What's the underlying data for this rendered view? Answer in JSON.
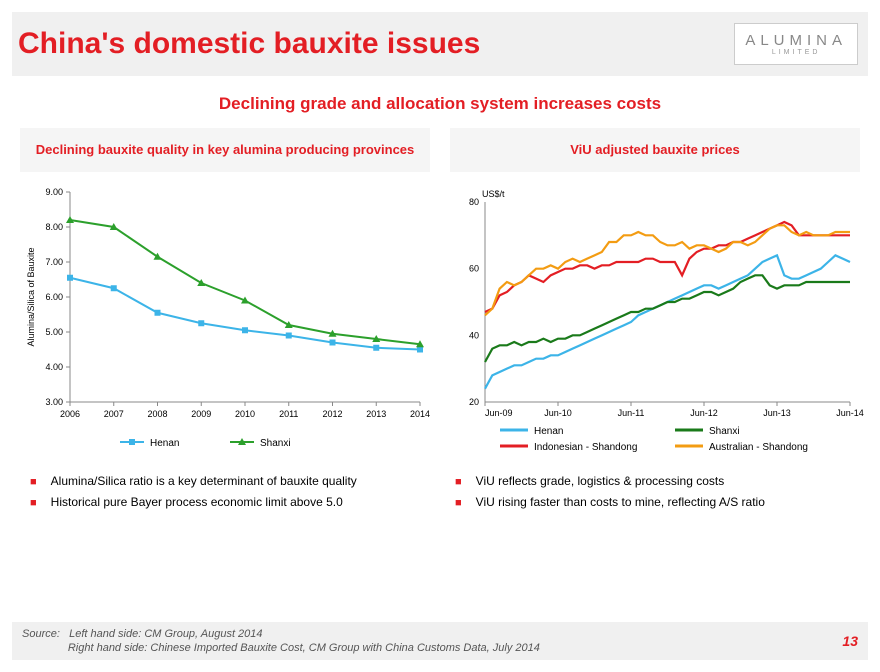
{
  "header": {
    "title": "China's domestic bauxite issues",
    "logo_main": "ALUMINA",
    "logo_sub": "LIMITED"
  },
  "subtitle": "Declining grade and allocation system increases costs",
  "left_chart": {
    "title": "Declining bauxite quality in key alumina producing provinces",
    "type": "line",
    "y_label": "Alumina/Silica of Bauxite",
    "x_ticks": [
      "2006",
      "2007",
      "2008",
      "2009",
      "2010",
      "2011",
      "2012",
      "2013",
      "2014"
    ],
    "y_min": 3.0,
    "y_max": 9.0,
    "y_step": 1.0,
    "series": [
      {
        "name": "Henan",
        "color": "#3cb4e8",
        "marker": "square",
        "values": [
          6.55,
          6.25,
          5.55,
          5.25,
          5.05,
          4.9,
          4.7,
          4.55,
          4.5
        ]
      },
      {
        "name": "Shanxi",
        "color": "#2ca02c",
        "marker": "triangle",
        "values": [
          8.2,
          8.0,
          7.15,
          6.4,
          5.9,
          5.2,
          4.95,
          4.8,
          4.65
        ]
      }
    ],
    "axis_color": "#888888",
    "grid_color": "#e0e0e0",
    "label_fontsize": 9,
    "tick_fontsize": 9,
    "line_width": 2
  },
  "right_chart": {
    "title": "ViU adjusted bauxite prices",
    "type": "line",
    "y_unit_label": "US$/t",
    "x_ticks": [
      "Jun-09",
      "Jun-10",
      "Jun-11",
      "Jun-12",
      "Jun-13",
      "Jun-14"
    ],
    "y_min": 20,
    "y_max": 80,
    "y_step": 20,
    "n_points": 51,
    "series": [
      {
        "name": "Henan",
        "color": "#3cb4e8",
        "values": [
          24,
          28,
          29,
          30,
          31,
          31,
          32,
          33,
          33,
          34,
          34,
          35,
          36,
          37,
          38,
          39,
          40,
          41,
          42,
          43,
          44,
          46,
          47,
          48,
          49,
          50,
          51,
          52,
          53,
          54,
          55,
          55,
          54,
          55,
          56,
          57,
          58,
          60,
          62,
          63,
          64,
          58,
          57,
          57,
          58,
          59,
          60,
          62,
          64,
          63,
          62
        ]
      },
      {
        "name": "Shanxi",
        "color": "#1a7a1a",
        "values": [
          32,
          36,
          37,
          37,
          38,
          37,
          38,
          38,
          39,
          38,
          39,
          39,
          40,
          40,
          41,
          42,
          43,
          44,
          45,
          46,
          47,
          47,
          48,
          48,
          49,
          50,
          50,
          51,
          51,
          52,
          53,
          53,
          52,
          53,
          54,
          56,
          57,
          58,
          58,
          55,
          54,
          55,
          55,
          55,
          56,
          56,
          56,
          56,
          56,
          56,
          56
        ]
      },
      {
        "name": "Indonesian - Shandong",
        "color": "#e31e24",
        "values": [
          47,
          48,
          52,
          53,
          55,
          56,
          58,
          57,
          56,
          58,
          59,
          60,
          60,
          61,
          61,
          60,
          61,
          61,
          62,
          62,
          62,
          62,
          63,
          63,
          62,
          62,
          62,
          58,
          63,
          65,
          66,
          66,
          67,
          67,
          68,
          68,
          69,
          70,
          71,
          72,
          73,
          74,
          73,
          70,
          70,
          70,
          70,
          70,
          70,
          70,
          70
        ]
      },
      {
        "name": "Australian - Shandong",
        "color": "#f39c12",
        "values": [
          46,
          48,
          54,
          56,
          55,
          56,
          58,
          60,
          60,
          61,
          60,
          62,
          63,
          62,
          63,
          64,
          65,
          68,
          68,
          70,
          70,
          71,
          70,
          70,
          68,
          67,
          67,
          68,
          66,
          67,
          67,
          66,
          65,
          66,
          68,
          68,
          67,
          68,
          70,
          72,
          73,
          73,
          71,
          70,
          71,
          70,
          70,
          70,
          71,
          71,
          71
        ]
      }
    ],
    "axis_color": "#888888",
    "label_fontsize": 9,
    "tick_fontsize": 9,
    "line_width": 2.2
  },
  "bullets_left": [
    "Alumina/Silica ratio is a key determinant of bauxite quality",
    "Historical pure Bayer process economic limit above 5.0"
  ],
  "bullets_right": [
    "ViU reflects grade, logistics & processing costs",
    "ViU rising faster than costs to mine, reflecting A/S ratio"
  ],
  "footer": {
    "source_label": "Source:",
    "source_left": "Left hand side: CM Group, August 2014",
    "source_right": "Right hand side: Chinese Imported Bauxite Cost, CM Group with China Customs Data, July 2014",
    "page_number": "13"
  }
}
